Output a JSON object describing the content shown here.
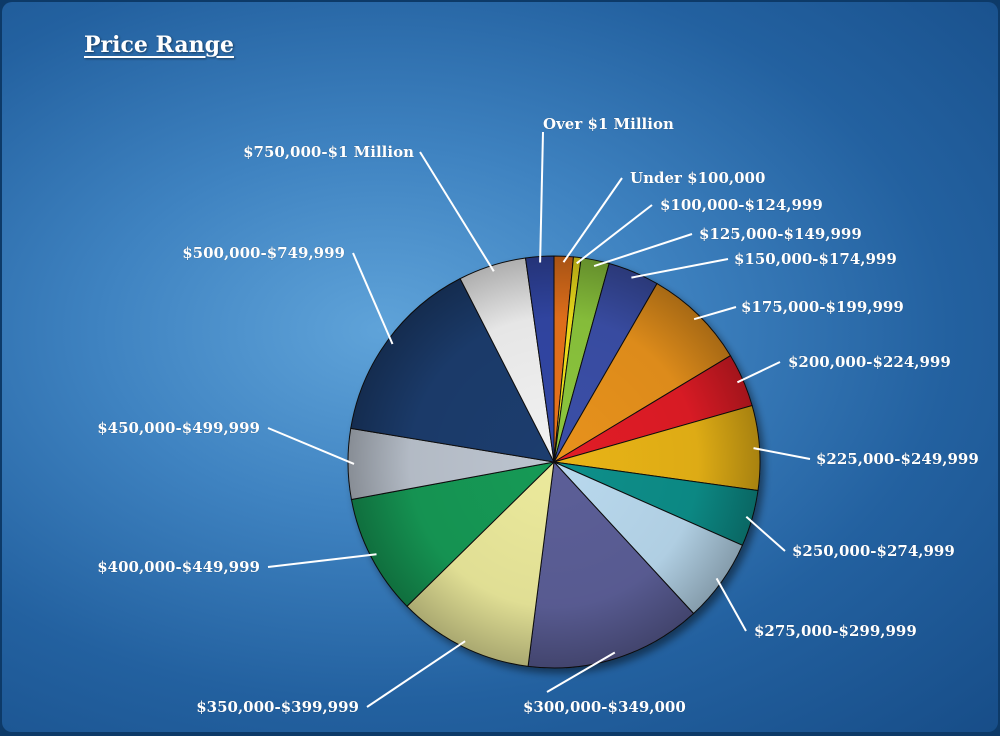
{
  "chart_data": {
    "type": "pie",
    "title": "Price Range",
    "slices": [
      {
        "label": "Under $100,000",
        "value": 1.5,
        "color": "#e8731a"
      },
      {
        "label": "$100,000-$124,999",
        "value": 0.6,
        "color": "#f2e21b"
      },
      {
        "label": "$125,000-$149,999",
        "value": 2.2,
        "color": "#8cc63e"
      },
      {
        "label": "$150,000-$174,999",
        "value": 4.0,
        "color": "#3a4fa8"
      },
      {
        "label": "$175,000-$199,999",
        "value": 8.0,
        "color": "#e8921e"
      },
      {
        "label": "$200,000-$224,999",
        "value": 4.2,
        "color": "#e21f26"
      },
      {
        "label": "$225,000-$249,999",
        "value": 6.6,
        "color": "#e9b418"
      },
      {
        "label": "$250,000-$274,999",
        "value": 4.4,
        "color": "#0f8f8a"
      },
      {
        "label": "$275,000-$299,999",
        "value": 6.5,
        "color": "#b9d9ee"
      },
      {
        "label": "$300,000-$349,000",
        "value": 13.8,
        "color": "#5c5f98"
      },
      {
        "label": "$350,000-$399,999",
        "value": 10.6,
        "color": "#ecea9c"
      },
      {
        "label": "$400,000-$449,999",
        "value": 9.4,
        "color": "#169a56"
      },
      {
        "label": "$450,000-$499,999",
        "value": 5.5,
        "color": "#bcc4cf"
      },
      {
        "label": "$500,000-$749,999",
        "value": 14.8,
        "color": "#1f3c6e"
      },
      {
        "label": "$750,000-$1 Million",
        "value": 5.3,
        "color": "#f2f2f2"
      },
      {
        "label": "Over $1 Million",
        "value": 2.2,
        "color": "#3346a6"
      }
    ],
    "legend": "none"
  }
}
